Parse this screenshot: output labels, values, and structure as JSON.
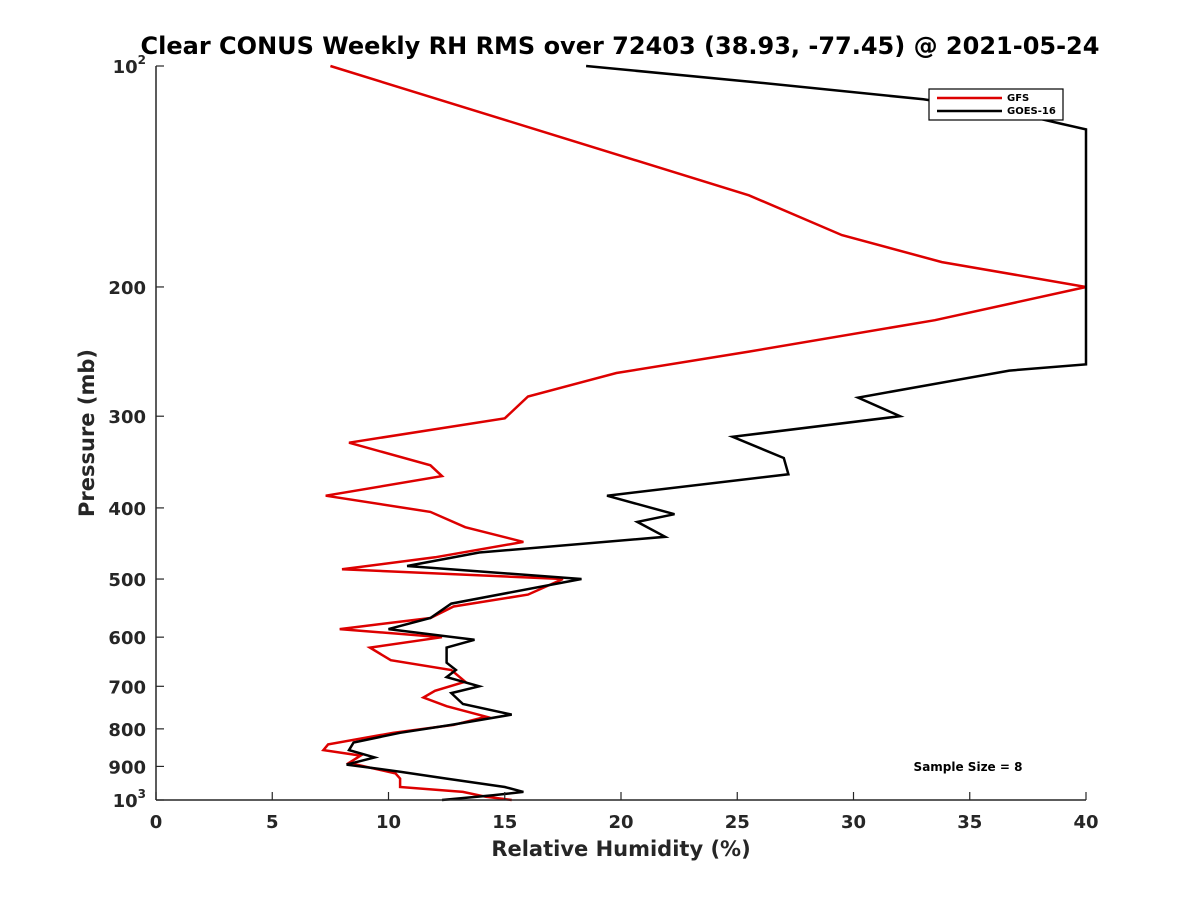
{
  "chart_data": {
    "type": "line",
    "title": "Clear CONUS Weekly RH RMS over 72403 (38.93, -77.45) @ 2021-05-24",
    "xlabel": "Relative Humidity (%)",
    "ylabel": "Pressure (mb)",
    "xlim": [
      0,
      40
    ],
    "ylim": [
      100,
      1000
    ],
    "y_scale": "log",
    "y_reversed": true,
    "x_ticks": [
      "0",
      "5",
      "10",
      "15",
      "20",
      "25",
      "30",
      "35",
      "40"
    ],
    "y_ticks": [
      {
        "value": 100,
        "base": "10",
        "exp": "2"
      },
      {
        "value": 200,
        "label": "200"
      },
      {
        "value": 300,
        "label": "300"
      },
      {
        "value": 400,
        "label": "400"
      },
      {
        "value": 500,
        "label": "500"
      },
      {
        "value": 600,
        "label": "600"
      },
      {
        "value": 700,
        "label": "700"
      },
      {
        "value": 800,
        "label": "800"
      },
      {
        "value": 900,
        "label": "900"
      },
      {
        "value": 1000,
        "base": "10",
        "exp": "3"
      }
    ],
    "grid": false,
    "legend_position": "top-right",
    "annotation": "Sample Size = 8",
    "series": [
      {
        "name": "GFS",
        "color": "#dd0000",
        "points": [
          [
            7.5,
            100
          ],
          [
            25.5,
            150
          ],
          [
            29.5,
            170
          ],
          [
            33.8,
            185
          ],
          [
            40,
            200
          ],
          [
            33.5,
            222
          ],
          [
            25.5,
            245
          ],
          [
            19.8,
            262
          ],
          [
            16.0,
            282
          ],
          [
            15.0,
            302
          ],
          [
            8.3,
            326
          ],
          [
            11.8,
            350
          ],
          [
            12.3,
            362
          ],
          [
            7.3,
            385
          ],
          [
            11.8,
            405
          ],
          [
            13.3,
            425
          ],
          [
            15.8,
            445
          ],
          [
            12.0,
            467
          ],
          [
            8.0,
            485
          ],
          [
            17.5,
            500
          ],
          [
            16.0,
            525
          ],
          [
            12.8,
            545
          ],
          [
            11.8,
            565
          ],
          [
            7.9,
            585
          ],
          [
            12.3,
            600
          ],
          [
            9.2,
            620
          ],
          [
            10.1,
            645
          ],
          [
            12.7,
            665
          ],
          [
            13.3,
            690
          ],
          [
            12.0,
            710
          ],
          [
            11.5,
            725
          ],
          [
            12.5,
            745
          ],
          [
            14.2,
            770
          ],
          [
            12.8,
            790
          ],
          [
            10.2,
            810
          ],
          [
            7.4,
            840
          ],
          [
            7.2,
            855
          ],
          [
            8.8,
            870
          ],
          [
            8.3,
            890
          ],
          [
            10.3,
            920
          ],
          [
            10.5,
            935
          ],
          [
            10.5,
            960
          ],
          [
            13.2,
            975
          ],
          [
            14.2,
            990
          ],
          [
            15.3,
            1000
          ]
        ]
      },
      {
        "name": "GOES-16",
        "color": "#000000",
        "points": [
          [
            18.5,
            100
          ],
          [
            25.5,
            105
          ],
          [
            33.0,
            111
          ],
          [
            37.0,
            116
          ],
          [
            39.0,
            120
          ],
          [
            40,
            122
          ],
          [
            40,
            255
          ],
          [
            36.7,
            260
          ],
          [
            30.2,
            283
          ],
          [
            32.0,
            300
          ],
          [
            24.8,
            320
          ],
          [
            27.0,
            342
          ],
          [
            27.2,
            360
          ],
          [
            19.4,
            385
          ],
          [
            22.3,
            408
          ],
          [
            20.7,
            418
          ],
          [
            21.9,
            438
          ],
          [
            13.9,
            460
          ],
          [
            10.8,
            480
          ],
          [
            18.3,
            500
          ],
          [
            12.7,
            540
          ],
          [
            11.8,
            565
          ],
          [
            10.0,
            585
          ],
          [
            13.7,
            605
          ],
          [
            12.5,
            620
          ],
          [
            12.5,
            650
          ],
          [
            12.9,
            665
          ],
          [
            12.5,
            680
          ],
          [
            13.9,
            700
          ],
          [
            12.7,
            715
          ],
          [
            13.2,
            740
          ],
          [
            15.3,
            765
          ],
          [
            12.7,
            790
          ],
          [
            10.5,
            810
          ],
          [
            8.5,
            835
          ],
          [
            8.3,
            855
          ],
          [
            9.4,
            875
          ],
          [
            8.2,
            895
          ],
          [
            10.5,
            915
          ],
          [
            12.5,
            935
          ],
          [
            15.0,
            960
          ],
          [
            15.8,
            975
          ],
          [
            14.5,
            985
          ],
          [
            12.3,
            1000
          ]
        ]
      }
    ]
  }
}
